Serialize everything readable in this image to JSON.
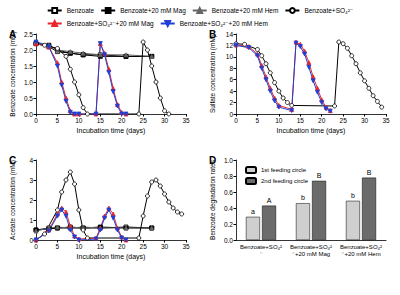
{
  "chart_data": [
    {
      "type": "line",
      "title": "A",
      "legend": "top",
      "grid": false,
      "xlabel": "Incubation time (days)",
      "ylabel": "Benzoate concentration (mM)",
      "xlim": [
        0,
        35
      ],
      "xticks": [
        0,
        5,
        10,
        15,
        20,
        25,
        30,
        35
      ],
      "ylim": [
        0,
        2.5
      ],
      "yticks": [
        {
          "value": 0,
          "label": "0.0"
        },
        0.5,
        {
          "value": 1,
          "label": "1.0"
        },
        1.5,
        {
          "value": 2,
          "label": "2.0"
        },
        2.5
      ],
      "series": [
        {
          "name": "Benzoate",
          "color": "#000000",
          "marker": "square_open",
          "x": [
            0,
            3,
            5,
            8,
            11,
            15,
            21,
            27
          ],
          "values": [
            2.2,
            2.1,
            1.95,
            1.9,
            1.85,
            1.85,
            1.8,
            1.8
          ]
        },
        {
          "name": "Benzoate+20 mM Mag",
          "color": "#000000",
          "marker": "square",
          "x": [
            0,
            3,
            5,
            8,
            11,
            15,
            21,
            27
          ],
          "values": [
            2.2,
            2.15,
            2.0,
            1.9,
            1.85,
            1.8,
            1.8,
            1.8
          ]
        },
        {
          "name": "Benzoate+20 mM Hem",
          "color": "#666666",
          "marker": "triangle",
          "x": [
            0,
            3,
            5,
            8,
            11,
            15,
            21,
            27
          ],
          "values": [
            2.25,
            2.15,
            2.0,
            1.95,
            1.9,
            1.85,
            1.85,
            1.8
          ]
        },
        {
          "name": "Benzoate+SO₄²⁻",
          "color": "#000000",
          "marker": "circle_open",
          "x": [
            0,
            2,
            5,
            7,
            8,
            9,
            10,
            11,
            12,
            24,
            25,
            26,
            27,
            28,
            29,
            30,
            31
          ],
          "values": [
            2.2,
            2.15,
            2.05,
            1.8,
            1.4,
            1.0,
            0.6,
            0.2,
            0,
            0,
            2.25,
            2.0,
            1.5,
            1.0,
            0.5,
            0.1,
            0
          ]
        },
        {
          "name": "Benzoate+SO₄²⁻+20 mM Mag",
          "color": "#e8262b",
          "marker": "triangle",
          "x": [
            0,
            3,
            5,
            6,
            7,
            8,
            9,
            10,
            14,
            15,
            16,
            17,
            18,
            19,
            20,
            21
          ],
          "values": [
            2.2,
            2.1,
            1.6,
            1.0,
            0.5,
            0.1,
            0,
            0,
            0,
            2.2,
            1.9,
            1.4,
            0.8,
            0.3,
            0.05,
            0
          ]
        },
        {
          "name": "Benzoate+SO₄²⁻+20 mM Hem",
          "color": "#1f3fd6",
          "marker": "triangle_down",
          "x": [
            0,
            3,
            5,
            6,
            7,
            8,
            9,
            10,
            14,
            15,
            16,
            17,
            18,
            19,
            20,
            21
          ],
          "values": [
            2.25,
            2.1,
            1.5,
            0.9,
            0.4,
            0.05,
            0,
            0,
            0,
            2.2,
            1.85,
            1.3,
            0.7,
            0.25,
            0,
            0
          ]
        }
      ]
    },
    {
      "type": "line",
      "title": "B",
      "grid": false,
      "xlabel": "Incubation time (days)",
      "ylabel": "Sulfate concentration (mM)",
      "xlim": [
        0,
        35
      ],
      "xticks": [
        0,
        5,
        10,
        15,
        20,
        25,
        30,
        35
      ],
      "ylim": [
        0,
        14
      ],
      "yticks": [
        0,
        2,
        4,
        6,
        8,
        10,
        12,
        14
      ],
      "series": [
        {
          "name": "Benzoate+SO₄²⁻",
          "color": "#000000",
          "marker": "circle_open",
          "x": [
            0,
            2,
            5,
            6,
            7,
            8,
            9,
            10,
            11,
            12,
            13,
            23,
            24,
            25,
            26,
            27,
            28,
            29,
            30,
            31,
            32,
            33,
            34
          ],
          "values": [
            12.3,
            12.2,
            11.3,
            10.2,
            8.8,
            7.2,
            5.5,
            4.0,
            2.8,
            2.0,
            1.5,
            1.4,
            12.6,
            12.3,
            11.5,
            10.2,
            8.8,
            7.2,
            5.8,
            4.5,
            3.2,
            2.2,
            1.2
          ]
        },
        {
          "name": "Benzoate+SO₄²⁻+20 mM Mag",
          "color": "#e8262b",
          "marker": "triangle",
          "x": [
            0,
            3,
            5,
            6,
            7,
            8,
            9,
            10,
            13,
            14,
            15,
            16,
            17,
            18,
            19,
            20,
            21,
            22
          ],
          "values": [
            12.1,
            11.8,
            10.5,
            8.5,
            6.5,
            4.5,
            2.8,
            1.5,
            0.8,
            12.6,
            12.2,
            11.0,
            9.0,
            6.5,
            4.5,
            2.5,
            1.2,
            0.6
          ]
        },
        {
          "name": "Benzoate+SO₄²⁻+20 mM Hem",
          "color": "#1f3fd6",
          "marker": "triangle_down",
          "x": [
            0,
            3,
            5,
            6,
            7,
            8,
            9,
            10,
            13,
            14,
            15,
            16,
            17,
            18,
            19,
            20,
            21,
            22
          ],
          "values": [
            12.0,
            11.6,
            10.2,
            8.0,
            6.0,
            4.0,
            2.3,
            1.2,
            0.6,
            12.4,
            11.8,
            10.5,
            8.2,
            5.8,
            3.8,
            2.0,
            0.9,
            0.5
          ]
        }
      ]
    },
    {
      "type": "line",
      "title": "C",
      "grid": false,
      "xlabel": "Incubation time (days)",
      "ylabel": "Acetate concentration (mM)",
      "xlim": [
        0,
        35
      ],
      "xticks": [
        0,
        5,
        10,
        15,
        20,
        25,
        30,
        35
      ],
      "ylim": [
        0,
        4
      ],
      "yticks": [
        0,
        1,
        2,
        3,
        4
      ],
      "series": [
        {
          "name": "Benzoate",
          "color": "#000000",
          "marker": "square_open",
          "x": [
            0,
            3,
            5,
            8,
            11,
            15,
            21,
            27
          ],
          "values": [
            0.5,
            0.6,
            0.6,
            0.65,
            0.6,
            0.6,
            0.65,
            0.6
          ]
        },
        {
          "name": "Benzoate+20 mM Mag",
          "color": "#000000",
          "marker": "square",
          "x": [
            0,
            3,
            5,
            8,
            11,
            15,
            21,
            27
          ],
          "values": [
            0.5,
            0.55,
            0.6,
            0.6,
            0.6,
            0.65,
            0.6,
            0.6
          ]
        },
        {
          "name": "Benzoate+20 mM Hem",
          "color": "#666666",
          "marker": "triangle",
          "x": [
            0,
            3,
            5,
            8,
            11,
            15,
            21,
            27
          ],
          "values": [
            0.45,
            0.6,
            0.65,
            0.6,
            0.65,
            0.6,
            0.6,
            0.6
          ]
        },
        {
          "name": "Benzoate+SO₄²⁻",
          "color": "#000000",
          "marker": "circle_open",
          "x": [
            0,
            2,
            5,
            6,
            7,
            8,
            9,
            10,
            11,
            12,
            24,
            25,
            26,
            27,
            28,
            29,
            30,
            31,
            32,
            33,
            34
          ],
          "values": [
            0,
            0.3,
            1.5,
            2.4,
            3.0,
            3.4,
            2.8,
            1.5,
            0.5,
            0.1,
            0.1,
            1.2,
            2.2,
            2.9,
            3.0,
            2.7,
            2.3,
            1.9,
            1.6,
            1.4,
            1.3
          ]
        },
        {
          "name": "Benzoate+SO₄²⁻+20 mM Mag",
          "color": "#e8262b",
          "marker": "triangle",
          "x": [
            0,
            3,
            5,
            6,
            7,
            8,
            9,
            10,
            14,
            15,
            16,
            17,
            18,
            19,
            20,
            21
          ],
          "values": [
            0,
            0.5,
            1.3,
            1.6,
            1.4,
            0.7,
            0.2,
            0.05,
            0.1,
            0.6,
            1.2,
            1.6,
            1.3,
            0.6,
            0.15,
            0
          ]
        },
        {
          "name": "Benzoate+SO₄²⁻+20 mM Hem",
          "color": "#1f3fd6",
          "marker": "triangle_down",
          "x": [
            0,
            3,
            5,
            6,
            7,
            8,
            9,
            10,
            14,
            15,
            16,
            17,
            18,
            19,
            20,
            21
          ],
          "values": [
            0,
            0.45,
            1.2,
            1.5,
            1.2,
            0.5,
            0.15,
            0,
            0.05,
            0.5,
            1.1,
            1.5,
            1.1,
            0.5,
            0.1,
            0
          ]
        }
      ]
    },
    {
      "type": "bar",
      "title": "D",
      "legend": "upper left",
      "grid": false,
      "ylabel": "Benzoate degradation rates",
      "categories": [
        "Benzoate+SO₄²⁻",
        "Benzoate+SO₄²⁻+20 mM Mag",
        "Benzoate+SO₄²⁻+20 mM Hem"
      ],
      "ylim": [
        0,
        1
      ],
      "yticks": [
        {
          "value": 0,
          "label": "0.0"
        },
        0.2,
        0.4,
        0.6,
        0.8,
        {
          "value": 1,
          "label": "1.0"
        }
      ],
      "series": [
        {
          "name": "1st feeding circle",
          "color": "#cfcfcf",
          "values": [
            0.29,
            0.46,
            0.49
          ],
          "letters": [
            "a",
            "b",
            "b"
          ]
        },
        {
          "name": "2nd feeding circle",
          "color": "#6b6b6b",
          "values": [
            0.43,
            0.74,
            0.78
          ],
          "letters": [
            "A",
            "B",
            "B"
          ]
        }
      ]
    }
  ]
}
